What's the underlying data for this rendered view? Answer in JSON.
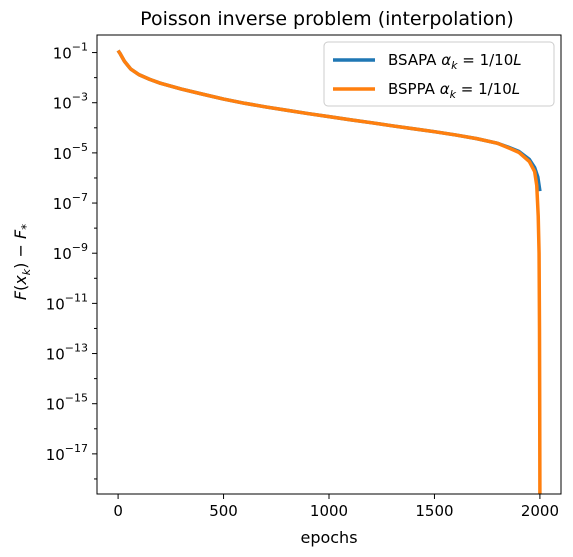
{
  "chart_data": {
    "type": "line",
    "title": "Poisson inverse problem (interpolation)",
    "xlabel": "epochs",
    "ylabel_parts": {
      "f": "F",
      "x": "x",
      "k": "k",
      "minus": "−",
      "F": "F",
      "star": "*"
    },
    "x_scale": "linear",
    "y_scale": "log",
    "xlim": [
      -100,
      2100
    ],
    "ylim_exp": [
      -18.6,
      -0.3
    ],
    "x_ticks": [
      0,
      500,
      1000,
      1500,
      2000
    ],
    "y_tick_exponents": [
      -1,
      -3,
      -5,
      -7,
      -9,
      -11,
      -13,
      -15,
      -17
    ],
    "y_tick_base": "10",
    "grid": false,
    "legend_position": "top-right",
    "series": [
      {
        "name": "BSAPA",
        "legend_label": {
          "base": "BSAPA ",
          "alpha": "α",
          "sub": "k",
          "rest": " = 1/10",
          "L": "L"
        },
        "color": "#1f77b4",
        "points": [
          [
            0,
            0.12
          ],
          [
            10,
            0.09
          ],
          [
            30,
            0.045
          ],
          [
            60,
            0.022
          ],
          [
            100,
            0.013
          ],
          [
            150,
            0.0085
          ],
          [
            200,
            0.006
          ],
          [
            300,
            0.0035
          ],
          [
            400,
            0.0022
          ],
          [
            500,
            0.0014
          ],
          [
            600,
            0.00095
          ],
          [
            700,
            0.00068
          ],
          [
            800,
            0.0005
          ],
          [
            900,
            0.00037
          ],
          [
            1000,
            0.00028
          ],
          [
            1100,
            0.00021
          ],
          [
            1200,
            0.00016
          ],
          [
            1300,
            0.00012
          ],
          [
            1400,
            9.2e-05
          ],
          [
            1500,
            7e-05
          ],
          [
            1600,
            5.2e-05
          ],
          [
            1700,
            3.7e-05
          ],
          [
            1800,
            2.4e-05
          ],
          [
            1850,
            1.7e-05
          ],
          [
            1900,
            1.15e-05
          ],
          [
            1950,
            5.5e-06
          ],
          [
            1975,
            2.6e-06
          ],
          [
            1990,
            1.1e-06
          ],
          [
            2000,
            3e-07
          ]
        ]
      },
      {
        "name": "BSPPA",
        "legend_label": {
          "base": "BSPPA ",
          "alpha": "α",
          "sub": "k",
          "rest": " = 1/10",
          "L": "L"
        },
        "color": "#ff7f0e",
        "points": [
          [
            0,
            0.12
          ],
          [
            10,
            0.09
          ],
          [
            30,
            0.045
          ],
          [
            60,
            0.022
          ],
          [
            100,
            0.013
          ],
          [
            150,
            0.0085
          ],
          [
            200,
            0.006
          ],
          [
            300,
            0.0035
          ],
          [
            400,
            0.0022
          ],
          [
            500,
            0.0014
          ],
          [
            600,
            0.00095
          ],
          [
            700,
            0.00068
          ],
          [
            800,
            0.0005
          ],
          [
            900,
            0.00037
          ],
          [
            1000,
            0.00028
          ],
          [
            1100,
            0.00021
          ],
          [
            1200,
            0.00016
          ],
          [
            1300,
            0.00012
          ],
          [
            1400,
            9.2e-05
          ],
          [
            1500,
            7e-05
          ],
          [
            1600,
            5.2e-05
          ],
          [
            1700,
            3.7e-05
          ],
          [
            1800,
            2.4e-05
          ],
          [
            1850,
            1.6e-05
          ],
          [
            1900,
            1.05e-05
          ],
          [
            1950,
            4.5e-06
          ],
          [
            1975,
            1.8e-06
          ],
          [
            1985,
            5e-07
          ],
          [
            1992,
            3e-08
          ],
          [
            1996,
            1e-09
          ],
          [
            1998,
            1e-12
          ],
          [
            1999,
            1e-15
          ],
          [
            2000,
            2.5e-19
          ]
        ]
      }
    ]
  }
}
